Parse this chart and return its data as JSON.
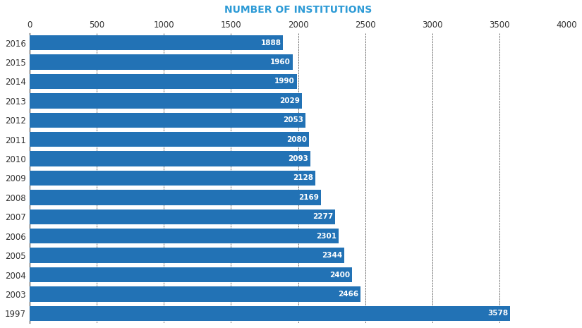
{
  "title": "NUMBER OF INSTITUTIONS",
  "title_color": "#2E9BD6",
  "title_fontsize": 10,
  "categories": [
    "1997",
    "2003",
    "2004",
    "2005",
    "2006",
    "2007",
    "2008",
    "2009",
    "2010",
    "2011",
    "2012",
    "2013",
    "2014",
    "2015",
    "2016"
  ],
  "values": [
    3578,
    2466,
    2400,
    2344,
    2301,
    2277,
    2169,
    2128,
    2093,
    2080,
    2053,
    2029,
    1990,
    1960,
    1888
  ],
  "bar_color": "#2272B5",
  "label_color": "#ffffff",
  "label_fontsize": 7.5,
  "xlim": [
    0,
    4000
  ],
  "xticks": [
    0,
    500,
    1000,
    1500,
    2000,
    2500,
    3000,
    3500,
    4000
  ],
  "grid_color": "#333333",
  "background_color": "#ffffff",
  "bar_height": 0.78,
  "tick_label_fontsize": 8.5,
  "axis_label_color": "#333333"
}
